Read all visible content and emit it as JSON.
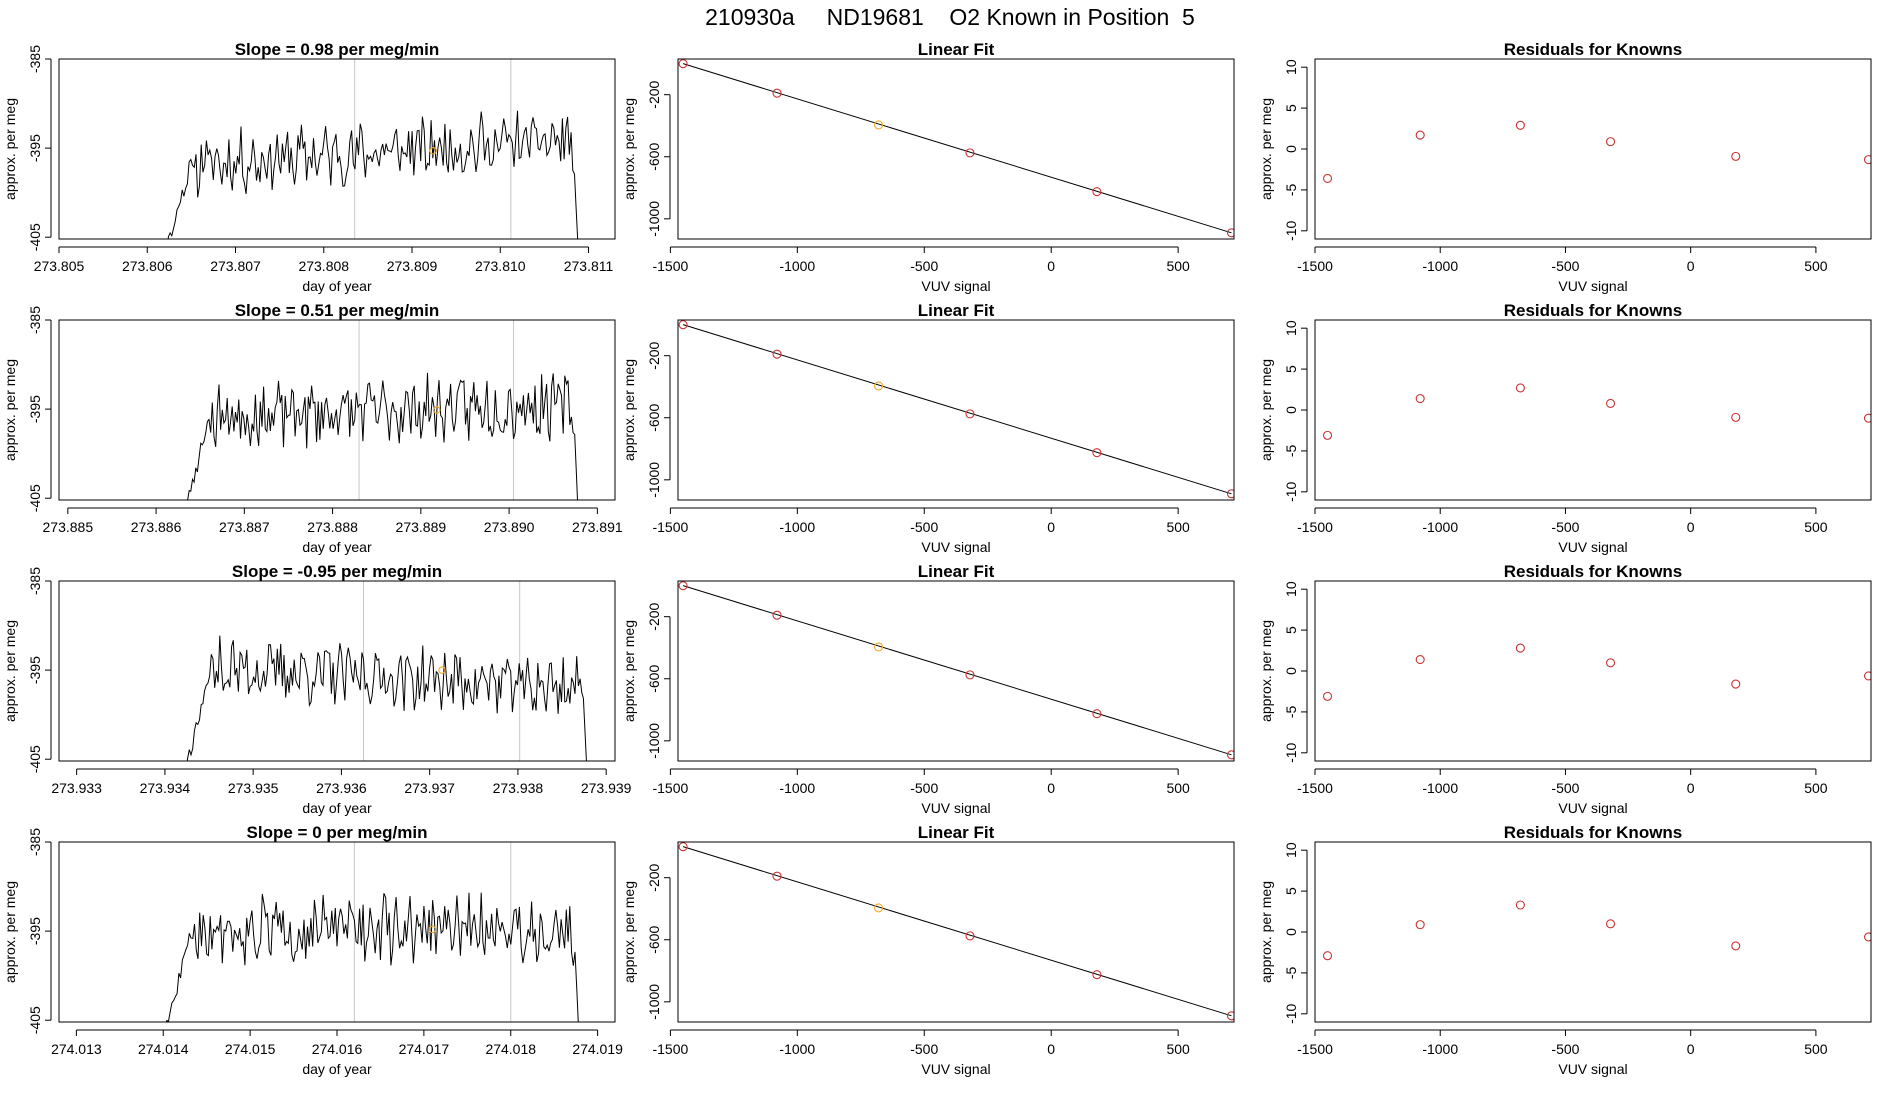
{
  "main_title": "210930a     ND19681    O2 Known in Position  5",
  "colors": {
    "known": "#f5a623",
    "residual_point": "#cc3333",
    "line": "#000000",
    "axis": "#000000",
    "vline": "#c8c8c8"
  },
  "chart_data": [
    {
      "type": "line",
      "panel": "time",
      "row": 1,
      "title": "Slope =  0.98  per meg/min",
      "xlabel": "day of year",
      "ylabel": "approx. per meg",
      "xlim": [
        273.805,
        273.8113
      ],
      "ylim": [
        -405.2,
        -385
      ],
      "xticks": [
        273.805,
        273.806,
        273.807,
        273.808,
        273.809,
        273.81,
        273.811
      ],
      "xtick_labels": [
        "273.805",
        "273.806",
        "273.807",
        "273.808",
        "273.809",
        "273.810",
        "273.811"
      ],
      "yticks": [
        -385,
        -395,
        -405
      ],
      "ytick_labels": [
        "-385",
        "-395",
        "-405"
      ],
      "trace": {
        "x_start": 273.8062,
        "x_end": 273.8109,
        "ramp_from": -407,
        "level": -395.5,
        "amplitude": 1.8,
        "drift": 1.0,
        "seed": 11
      },
      "vlines": [
        273.80835,
        273.81012
      ],
      "known_point": {
        "x": 273.80924,
        "y": -395.3
      }
    },
    {
      "type": "scatter",
      "panel": "fit",
      "row": 1,
      "title": "Linear Fit",
      "xlabel": "VUV signal",
      "ylabel": "approx. per meg",
      "xlim": [
        -1470,
        720
      ],
      "ylim": [
        -1130,
        30
      ],
      "xticks": [
        -1500,
        -1000,
        -500,
        0,
        500
      ],
      "xtick_labels": [
        "-1500",
        "-1000",
        "-500",
        "0",
        "500"
      ],
      "yticks": [
        -200,
        -600,
        -1000
      ],
      "ytick_labels": [
        "-200",
        "-600",
        "-1000"
      ],
      "points": [
        {
          "x": -1450,
          "y": 0
        },
        {
          "x": -1080,
          "y": -190
        },
        {
          "x": -680,
          "y": -395
        },
        {
          "x": -320,
          "y": -575
        },
        {
          "x": 180,
          "y": -825
        },
        {
          "x": 710,
          "y": -1090
        }
      ],
      "known_index": 2,
      "fit_line": {
        "x": [
          -1450,
          710
        ],
        "y": [
          0,
          -1090
        ]
      }
    },
    {
      "type": "scatter",
      "panel": "resid",
      "row": 1,
      "title": "Residuals for Knowns",
      "xlabel": "VUV signal",
      "ylabel": "approx. per meg",
      "xlim": [
        -1500,
        720
      ],
      "ylim": [
        -11,
        11
      ],
      "xticks": [
        -1500,
        -1000,
        -500,
        0,
        500
      ],
      "xtick_labels": [
        "-1500",
        "-1000",
        "-500",
        "0",
        "500"
      ],
      "yticks": [
        10,
        5,
        0,
        -5,
        -10
      ],
      "ytick_labels": [
        "10",
        "5",
        "0",
        "-5",
        "-10"
      ],
      "points": [
        {
          "x": -1450,
          "y": -3.6
        },
        {
          "x": -1080,
          "y": 1.7
        },
        {
          "x": -680,
          "y": 2.9
        },
        {
          "x": -320,
          "y": 0.9
        },
        {
          "x": 180,
          "y": -0.9
        },
        {
          "x": 710,
          "y": -1.3
        }
      ]
    },
    {
      "type": "line",
      "panel": "time",
      "row": 2,
      "title": "Slope =  0.51  per meg/min",
      "xlabel": "day of year",
      "ylabel": "approx. per meg",
      "xlim": [
        273.8849,
        273.8912
      ],
      "ylim": [
        -405.2,
        -385
      ],
      "xticks": [
        273.885,
        273.886,
        273.887,
        273.888,
        273.889,
        273.89,
        273.891
      ],
      "xtick_labels": [
        "273.885",
        "273.886",
        "273.887",
        "273.888",
        "273.889",
        "273.890",
        "273.891"
      ],
      "yticks": [
        -385,
        -395,
        -405
      ],
      "ytick_labels": [
        "-385",
        "-395",
        "-405"
      ],
      "trace": {
        "x_start": 273.8863,
        "x_end": 273.8908,
        "ramp_from": -408,
        "level": -395.2,
        "amplitude": 1.9,
        "drift": 0.5,
        "seed": 23
      },
      "vlines": [
        273.8883,
        273.89005
      ],
      "known_point": {
        "x": 273.88918,
        "y": -395.1
      }
    },
    {
      "type": "scatter",
      "panel": "fit",
      "row": 2,
      "title": "Linear Fit",
      "xlabel": "VUV signal",
      "ylabel": "approx. per meg",
      "xlim": [
        -1470,
        720
      ],
      "ylim": [
        -1130,
        30
      ],
      "xticks": [
        -1500,
        -1000,
        -500,
        0,
        500
      ],
      "xtick_labels": [
        "-1500",
        "-1000",
        "-500",
        "0",
        "500"
      ],
      "yticks": [
        -200,
        -600,
        -1000
      ],
      "ytick_labels": [
        "-200",
        "-600",
        "-1000"
      ],
      "points": [
        {
          "x": -1450,
          "y": 0
        },
        {
          "x": -1080,
          "y": -190
        },
        {
          "x": -680,
          "y": -395
        },
        {
          "x": -320,
          "y": -575
        },
        {
          "x": 180,
          "y": -825
        },
        {
          "x": 710,
          "y": -1090
        }
      ],
      "known_index": 2,
      "fit_line": {
        "x": [
          -1450,
          710
        ],
        "y": [
          0,
          -1090
        ]
      }
    },
    {
      "type": "scatter",
      "panel": "resid",
      "row": 2,
      "title": "Residuals for Knowns",
      "xlabel": "VUV signal",
      "ylabel": "approx. per meg",
      "xlim": [
        -1500,
        720
      ],
      "ylim": [
        -11,
        11
      ],
      "xticks": [
        -1500,
        -1000,
        -500,
        0,
        500
      ],
      "xtick_labels": [
        "-1500",
        "-1000",
        "-500",
        "0",
        "500"
      ],
      "yticks": [
        10,
        5,
        0,
        -5,
        -10
      ],
      "ytick_labels": [
        "10",
        "5",
        "0",
        "-5",
        "-10"
      ],
      "points": [
        {
          "x": -1450,
          "y": -3.1
        },
        {
          "x": -1080,
          "y": 1.4
        },
        {
          "x": -680,
          "y": 2.7
        },
        {
          "x": -320,
          "y": 0.8
        },
        {
          "x": 180,
          "y": -0.9
        },
        {
          "x": 710,
          "y": -1.0
        }
      ]
    },
    {
      "type": "line",
      "panel": "time",
      "row": 3,
      "title": "Slope =  -0.95  per meg/min",
      "xlabel": "day of year",
      "ylabel": "approx. per meg",
      "xlim": [
        273.9328,
        273.9391
      ],
      "ylim": [
        -405.2,
        -385
      ],
      "xticks": [
        273.933,
        273.934,
        273.935,
        273.936,
        273.937,
        273.938,
        273.939
      ],
      "xtick_labels": [
        "273.933",
        "273.934",
        "273.935",
        "273.936",
        "273.937",
        "273.938",
        "273.939"
      ],
      "yticks": [
        -385,
        -395,
        -405
      ],
      "ytick_labels": [
        "-385",
        "-395",
        "-405"
      ],
      "trace": {
        "x_start": 273.9342,
        "x_end": 273.9388,
        "ramp_from": -407,
        "level": -395.8,
        "amplitude": 1.8,
        "drift": -0.8,
        "seed": 37
      },
      "vlines": [
        273.93625,
        273.93802
      ],
      "known_point": {
        "x": 273.93714,
        "y": -395.0
      }
    },
    {
      "type": "scatter",
      "panel": "fit",
      "row": 3,
      "title": "Linear Fit",
      "xlabel": "VUV signal",
      "ylabel": "approx. per meg",
      "xlim": [
        -1470,
        720
      ],
      "ylim": [
        -1130,
        30
      ],
      "xticks": [
        -1500,
        -1000,
        -500,
        0,
        500
      ],
      "xtick_labels": [
        "-1500",
        "-1000",
        "-500",
        "0",
        "500"
      ],
      "yticks": [
        -200,
        -600,
        -1000
      ],
      "ytick_labels": [
        "-200",
        "-600",
        "-1000"
      ],
      "points": [
        {
          "x": -1450,
          "y": 0
        },
        {
          "x": -1080,
          "y": -190
        },
        {
          "x": -680,
          "y": -395
        },
        {
          "x": -320,
          "y": -575
        },
        {
          "x": 180,
          "y": -825
        },
        {
          "x": 710,
          "y": -1090
        }
      ],
      "known_index": 2,
      "fit_line": {
        "x": [
          -1450,
          710
        ],
        "y": [
          0,
          -1090
        ]
      }
    },
    {
      "type": "scatter",
      "panel": "resid",
      "row": 3,
      "title": "Residuals for Knowns",
      "xlabel": "VUV signal",
      "ylabel": "approx. per meg",
      "xlim": [
        -1500,
        720
      ],
      "ylim": [
        -11,
        11
      ],
      "xticks": [
        -1500,
        -1000,
        -500,
        0,
        500
      ],
      "xtick_labels": [
        "-1500",
        "-1000",
        "-500",
        "0",
        "500"
      ],
      "yticks": [
        10,
        5,
        0,
        -5,
        -10
      ],
      "ytick_labels": [
        "10",
        "5",
        "0",
        "-5",
        "-10"
      ],
      "points": [
        {
          "x": -1450,
          "y": -3.1
        },
        {
          "x": -1080,
          "y": 1.4
        },
        {
          "x": -680,
          "y": 2.8
        },
        {
          "x": -320,
          "y": 1.0
        },
        {
          "x": 180,
          "y": -1.6
        },
        {
          "x": 710,
          "y": -0.6
        }
      ]
    },
    {
      "type": "line",
      "panel": "time",
      "row": 4,
      "title": "Slope =  0  per meg/min",
      "xlabel": "day of year",
      "ylabel": "approx. per meg",
      "xlim": [
        274.0128,
        274.0192
      ],
      "ylim": [
        -405.2,
        -385
      ],
      "xticks": [
        274.013,
        274.014,
        274.015,
        274.016,
        274.017,
        274.018,
        274.019
      ],
      "xtick_labels": [
        "274.013",
        "274.014",
        "274.015",
        "274.016",
        "274.017",
        "274.018",
        "274.019"
      ],
      "yticks": [
        -385,
        -395,
        -405
      ],
      "ytick_labels": [
        "-385",
        "-395",
        "-405"
      ],
      "trace": {
        "x_start": 274.014,
        "x_end": 274.0188,
        "ramp_from": -407,
        "level": -394.8,
        "amplitude": 1.9,
        "drift": 0.0,
        "seed": 51
      },
      "vlines": [
        274.0162,
        274.018
      ],
      "known_point": {
        "x": 274.0171,
        "y": -394.8
      }
    },
    {
      "type": "scatter",
      "panel": "fit",
      "row": 4,
      "title": "Linear Fit",
      "xlabel": "VUV signal",
      "ylabel": "approx. per meg",
      "xlim": [
        -1470,
        720
      ],
      "ylim": [
        -1130,
        30
      ],
      "xticks": [
        -1500,
        -1000,
        -500,
        0,
        500
      ],
      "xtick_labels": [
        "-1500",
        "-1000",
        "-500",
        "0",
        "500"
      ],
      "yticks": [
        -200,
        -600,
        -1000
      ],
      "ytick_labels": [
        "-200",
        "-600",
        "-1000"
      ],
      "points": [
        {
          "x": -1450,
          "y": 0
        },
        {
          "x": -1080,
          "y": -190
        },
        {
          "x": -680,
          "y": -395
        },
        {
          "x": -320,
          "y": -575
        },
        {
          "x": 180,
          "y": -825
        },
        {
          "x": 710,
          "y": -1090
        }
      ],
      "known_index": 2,
      "fit_line": {
        "x": [
          -1450,
          710
        ],
        "y": [
          0,
          -1090
        ]
      }
    },
    {
      "type": "scatter",
      "panel": "resid",
      "row": 4,
      "title": "Residuals for Knowns",
      "xlabel": "VUV signal",
      "ylabel": "approx. per meg",
      "xlim": [
        -1500,
        720
      ],
      "ylim": [
        -11,
        11
      ],
      "xticks": [
        -1500,
        -1000,
        -500,
        0,
        500
      ],
      "xtick_labels": [
        "-1500",
        "-1000",
        "-500",
        "0",
        "500"
      ],
      "yticks": [
        10,
        5,
        0,
        -5,
        -10
      ],
      "ytick_labels": [
        "10",
        "5",
        "0",
        "-5",
        "-10"
      ],
      "points": [
        {
          "x": -1450,
          "y": -2.9
        },
        {
          "x": -1080,
          "y": 0.9
        },
        {
          "x": -680,
          "y": 3.3
        },
        {
          "x": -320,
          "y": 1.0
        },
        {
          "x": 180,
          "y": -1.7
        },
        {
          "x": 710,
          "y": -0.6
        }
      ]
    }
  ]
}
